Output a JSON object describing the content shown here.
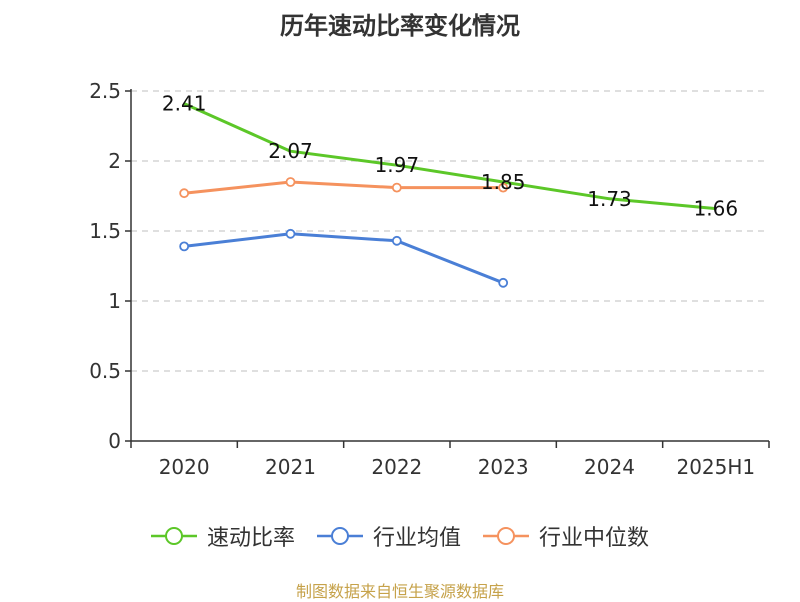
{
  "chart_data": {
    "type": "line",
    "title": "历年速动比率变化情况",
    "categories": [
      "2020",
      "2021",
      "2022",
      "2023",
      "2024",
      "2025H1"
    ],
    "ylim": [
      0,
      2.5
    ],
    "yticks": [
      "0",
      "0.5",
      "1",
      "1.5",
      "2",
      "2.5"
    ],
    "ytick_values": [
      0,
      0.5,
      1,
      1.5,
      2,
      2.5
    ],
    "grid": true,
    "legend_position": "bottom",
    "series": [
      {
        "name": "速动比率",
        "color": "#5cc728",
        "values": [
          2.41,
          2.07,
          1.97,
          1.85,
          1.73,
          1.66
        ],
        "labels": [
          "2.41",
          "2.07",
          "1.97",
          "1.85",
          "1.73",
          "1.66"
        ],
        "markers": false
      },
      {
        "name": "行业均值",
        "color": "#4a7fd6",
        "values": [
          1.39,
          1.48,
          1.43,
          1.13,
          null,
          null
        ],
        "markers": true
      },
      {
        "name": "行业中位数",
        "color": "#f5925e",
        "values": [
          1.77,
          1.85,
          1.81,
          1.81,
          null,
          null
        ],
        "markers": true
      }
    ]
  },
  "source": "制图数据来自恒生聚源数据库"
}
